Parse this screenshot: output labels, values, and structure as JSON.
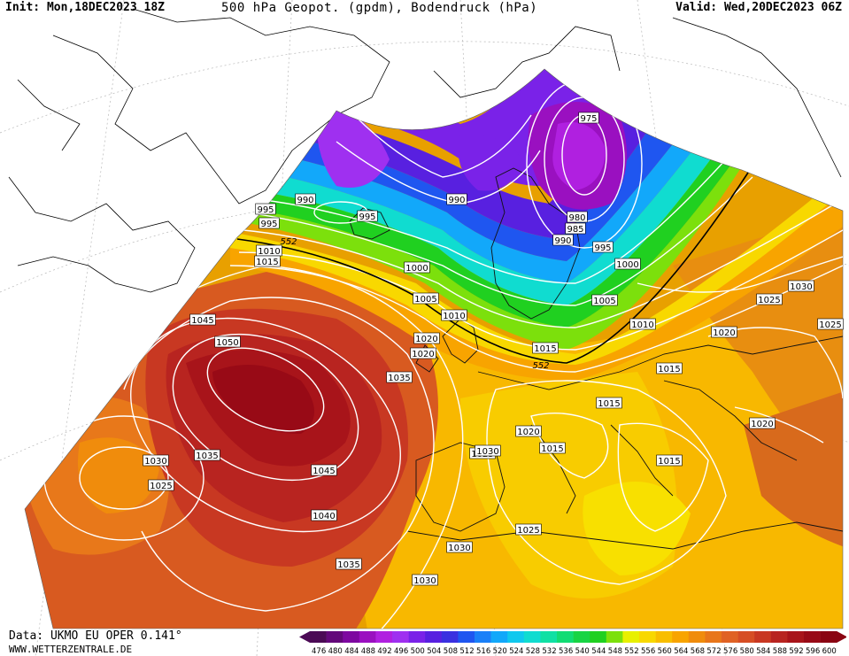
{
  "header": {
    "init": "Init: Mon,18DEC2023 18Z",
    "title": "500 hPa Geopot. (gpdm), Bodendruck (hPa)",
    "valid": "Valid: Wed,20DEC2023 06Z"
  },
  "footer": {
    "data_source": "Data: UKMO EU OPER 0.141°",
    "website": "WWW.WETTERZENTRALE.DE"
  },
  "legend": {
    "values": [
      476,
      480,
      484,
      488,
      492,
      496,
      500,
      504,
      508,
      512,
      516,
      520,
      524,
      528,
      532,
      536,
      540,
      544,
      548,
      552,
      556,
      560,
      564,
      568,
      572,
      576,
      580,
      584,
      588,
      592,
      596,
      600
    ],
    "colors": [
      "#4b0a55",
      "#63087a",
      "#7d08a0",
      "#9a10c0",
      "#b020e0",
      "#9f30f0",
      "#7a22e8",
      "#5820e0",
      "#3a30e0",
      "#1f56f0",
      "#1a80f8",
      "#12a8fa",
      "#10c8ee",
      "#10dcd0",
      "#10e0a4",
      "#12dc74",
      "#18d444",
      "#20d020",
      "#7ce00c",
      "#e8f000",
      "#f8d800",
      "#f8be00",
      "#f8a400",
      "#f08c0c",
      "#e8761a",
      "#e06224",
      "#d64e24",
      "#c83822",
      "#b82420",
      "#a8141a",
      "#980a16",
      "#8a0412"
    ]
  },
  "pressure_labels": [
    {
      "text": "975"
    },
    {
      "text": "980"
    },
    {
      "text": "985"
    },
    {
      "text": "990"
    },
    {
      "text": "990"
    },
    {
      "text": "990"
    },
    {
      "text": "995"
    },
    {
      "text": "995"
    },
    {
      "text": "995"
    },
    {
      "text": "995"
    },
    {
      "text": "1000"
    },
    {
      "text": "1000"
    },
    {
      "text": "1005"
    },
    {
      "text": "1005"
    },
    {
      "text": "1010"
    },
    {
      "text": "1010"
    },
    {
      "text": "1010"
    },
    {
      "text": "1015"
    },
    {
      "text": "1015"
    },
    {
      "text": "1015"
    },
    {
      "text": "1015"
    },
    {
      "text": "1015"
    },
    {
      "text": "1015"
    },
    {
      "text": "1020"
    },
    {
      "text": "1020"
    },
    {
      "text": "1020"
    },
    {
      "text": "1020"
    },
    {
      "text": "1020"
    },
    {
      "text": "1025"
    },
    {
      "text": "1025"
    },
    {
      "text": "1025"
    },
    {
      "text": "1025"
    },
    {
      "text": "1025"
    },
    {
      "text": "1030"
    },
    {
      "text": "1030"
    },
    {
      "text": "1030"
    },
    {
      "text": "1030"
    },
    {
      "text": "1030"
    },
    {
      "text": "1035"
    },
    {
      "text": "1035"
    },
    {
      "text": "1035"
    },
    {
      "text": "1040"
    },
    {
      "text": "1045"
    },
    {
      "text": "1045"
    },
    {
      "text": "1050"
    }
  ],
  "geopotential_labels": [
    {
      "text": "552"
    },
    {
      "text": "552"
    }
  ]
}
